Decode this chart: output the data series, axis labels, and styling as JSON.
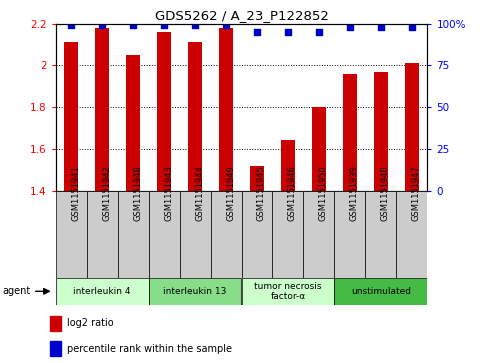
{
  "title": "GDS5262 / A_23_P122852",
  "samples": [
    "GSM1151941",
    "GSM1151942",
    "GSM1151948",
    "GSM1151943",
    "GSM1151944",
    "GSM1151949",
    "GSM1151945",
    "GSM1151946",
    "GSM1151950",
    "GSM1151939",
    "GSM1151940",
    "GSM1151947"
  ],
  "log2_values": [
    2.11,
    2.18,
    2.05,
    2.16,
    2.11,
    2.18,
    1.52,
    1.64,
    1.8,
    1.96,
    1.97,
    2.01
  ],
  "percentile_values": [
    99,
    99,
    99,
    99,
    99,
    99,
    95,
    95,
    95,
    98,
    98,
    98
  ],
  "bar_bottom": 1.4,
  "y_min": 1.4,
  "y_max": 2.2,
  "y_ticks": [
    1.4,
    1.6,
    1.8,
    2.0,
    2.2
  ],
  "y_tick_labels": [
    "1.4",
    "1.6",
    "1.8",
    "2",
    "2.2"
  ],
  "y2_ticks": [
    0,
    25,
    50,
    75,
    100
  ],
  "y2_tick_labels": [
    "0",
    "25",
    "50",
    "75",
    "100%"
  ],
  "bar_color": "#cc0000",
  "dot_color": "#0000cc",
  "agent_groups": [
    {
      "label": "interleukin 4",
      "start": 0,
      "end": 3,
      "color": "#ccffcc"
    },
    {
      "label": "interleukin 13",
      "start": 3,
      "end": 6,
      "color": "#88dd88"
    },
    {
      "label": "tumor necrosis\nfactor-α",
      "start": 6,
      "end": 9,
      "color": "#ccffcc"
    },
    {
      "label": "unstimulated",
      "start": 9,
      "end": 12,
      "color": "#44bb44"
    }
  ],
  "legend_red_label": "log2 ratio",
  "legend_blue_label": "percentile rank within the sample",
  "agent_label": "agent",
  "background_color": "#ffffff",
  "tick_box_color": "#cccccc",
  "sample_text_fontsize": 6,
  "bar_width": 0.45
}
